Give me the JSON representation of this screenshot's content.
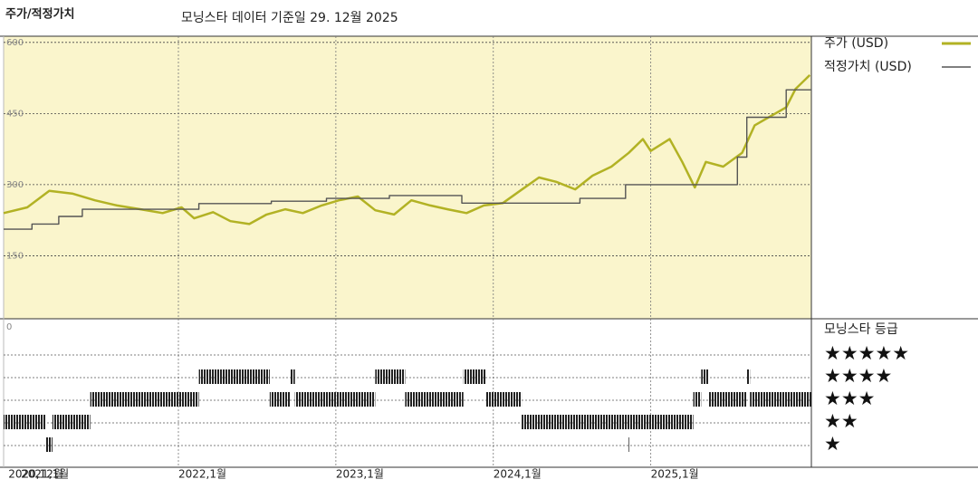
{
  "chart_data": {
    "type": "line",
    "title": "주가/적정가치",
    "subtitle": "모닝스타 데이터 기준일 29. 12월 2025",
    "xlim": [
      2020.89,
      2026.02
    ],
    "xticks": [
      {
        "value": 2020.92,
        "label": "2020,12월"
      },
      {
        "value": 2021.0,
        "label": "2021,1월"
      },
      {
        "value": 2022.0,
        "label": "2022,1월"
      },
      {
        "value": 2023.0,
        "label": "2023,1월"
      },
      {
        "value": 2024.0,
        "label": "2024,1월"
      },
      {
        "value": 2025.0,
        "label": "2025,1월"
      }
    ],
    "ylim": [
      0,
      613
    ],
    "yticks": [
      0,
      150,
      300,
      450,
      600
    ],
    "grid": true,
    "series": [
      {
        "name": "주가 (USD)",
        "color": "#b2b224",
        "x": [
          2020.89,
          2021.04,
          2021.18,
          2021.33,
          2021.47,
          2021.61,
          2021.76,
          2021.9,
          2022.02,
          2022.1,
          2022.22,
          2022.33,
          2022.45,
          2022.56,
          2022.68,
          2022.79,
          2022.91,
          2023.02,
          2023.14,
          2023.25,
          2023.37,
          2023.48,
          2023.6,
          2023.71,
          2023.83,
          2023.94,
          2024.06,
          2024.17,
          2024.29,
          2024.4,
          2024.52,
          2024.63,
          2024.75,
          2024.86,
          2024.95,
          2025.0,
          2025.12,
          2025.2,
          2025.28,
          2025.35,
          2025.46,
          2025.58,
          2025.66,
          2025.78,
          2025.86,
          2025.92,
          2026.01
        ],
        "values": [
          240,
          252,
          287,
          281,
          267,
          256,
          248,
          240,
          252,
          229,
          242,
          223,
          217,
          237,
          248,
          240,
          256,
          267,
          275,
          246,
          237,
          267,
          256,
          248,
          240,
          256,
          261,
          287,
          315,
          306,
          290,
          319,
          338,
          367,
          396,
          371,
          396,
          348,
          294,
          348,
          338,
          367,
          425,
          448,
          463,
          502,
          531
        ]
      },
      {
        "name": "적정가치 (USD)",
        "color": "#555555",
        "x": [
          2020.89,
          2021.07,
          2021.07,
          2021.24,
          2021.24,
          2021.39,
          2021.39,
          2022.13,
          2022.13,
          2022.59,
          2022.59,
          2022.94,
          2022.94,
          2023.34,
          2023.34,
          2023.8,
          2023.8,
          2024.55,
          2024.55,
          2024.84,
          2024.84,
          2025.55,
          2025.55,
          2025.61,
          2025.61,
          2025.86,
          2025.86,
          2026.02
        ],
        "values": [
          206,
          206,
          217,
          217,
          233,
          233,
          248,
          248,
          260,
          260,
          265,
          265,
          271,
          271,
          277,
          277,
          261,
          261,
          271,
          271,
          300,
          300,
          358,
          358,
          442,
          442,
          500,
          500
        ]
      }
    ],
    "rating_title": "모닝스타 등급",
    "rating_levels": [
      5,
      4,
      3,
      2,
      1
    ],
    "rating_labels": [
      "★★★★★",
      "★★★★",
      "★★★",
      "★★",
      "★"
    ],
    "ratings": {
      "start": [
        2020.89,
        2021.16,
        2021.2,
        2021.44,
        2022.13,
        2022.58,
        2022.71,
        2022.74,
        2023.25,
        2023.44,
        2023.81,
        2023.95,
        2024.18,
        2024.86,
        2025.27,
        2025.32,
        2025.37,
        2025.61,
        2025.63
      ],
      "end": [
        2021.16,
        2021.2,
        2021.44,
        2022.13,
        2022.58,
        2022.71,
        2022.74,
        2023.25,
        2023.44,
        2023.81,
        2023.95,
        2024.18,
        2025.27,
        2024.865,
        2025.32,
        2025.37,
        2025.61,
        2025.63,
        2026.02
      ],
      "rating": [
        2,
        1,
        2,
        3,
        4,
        3,
        4,
        3,
        4,
        3,
        4,
        3,
        2,
        1,
        3,
        4,
        3,
        4,
        3
      ]
    }
  }
}
